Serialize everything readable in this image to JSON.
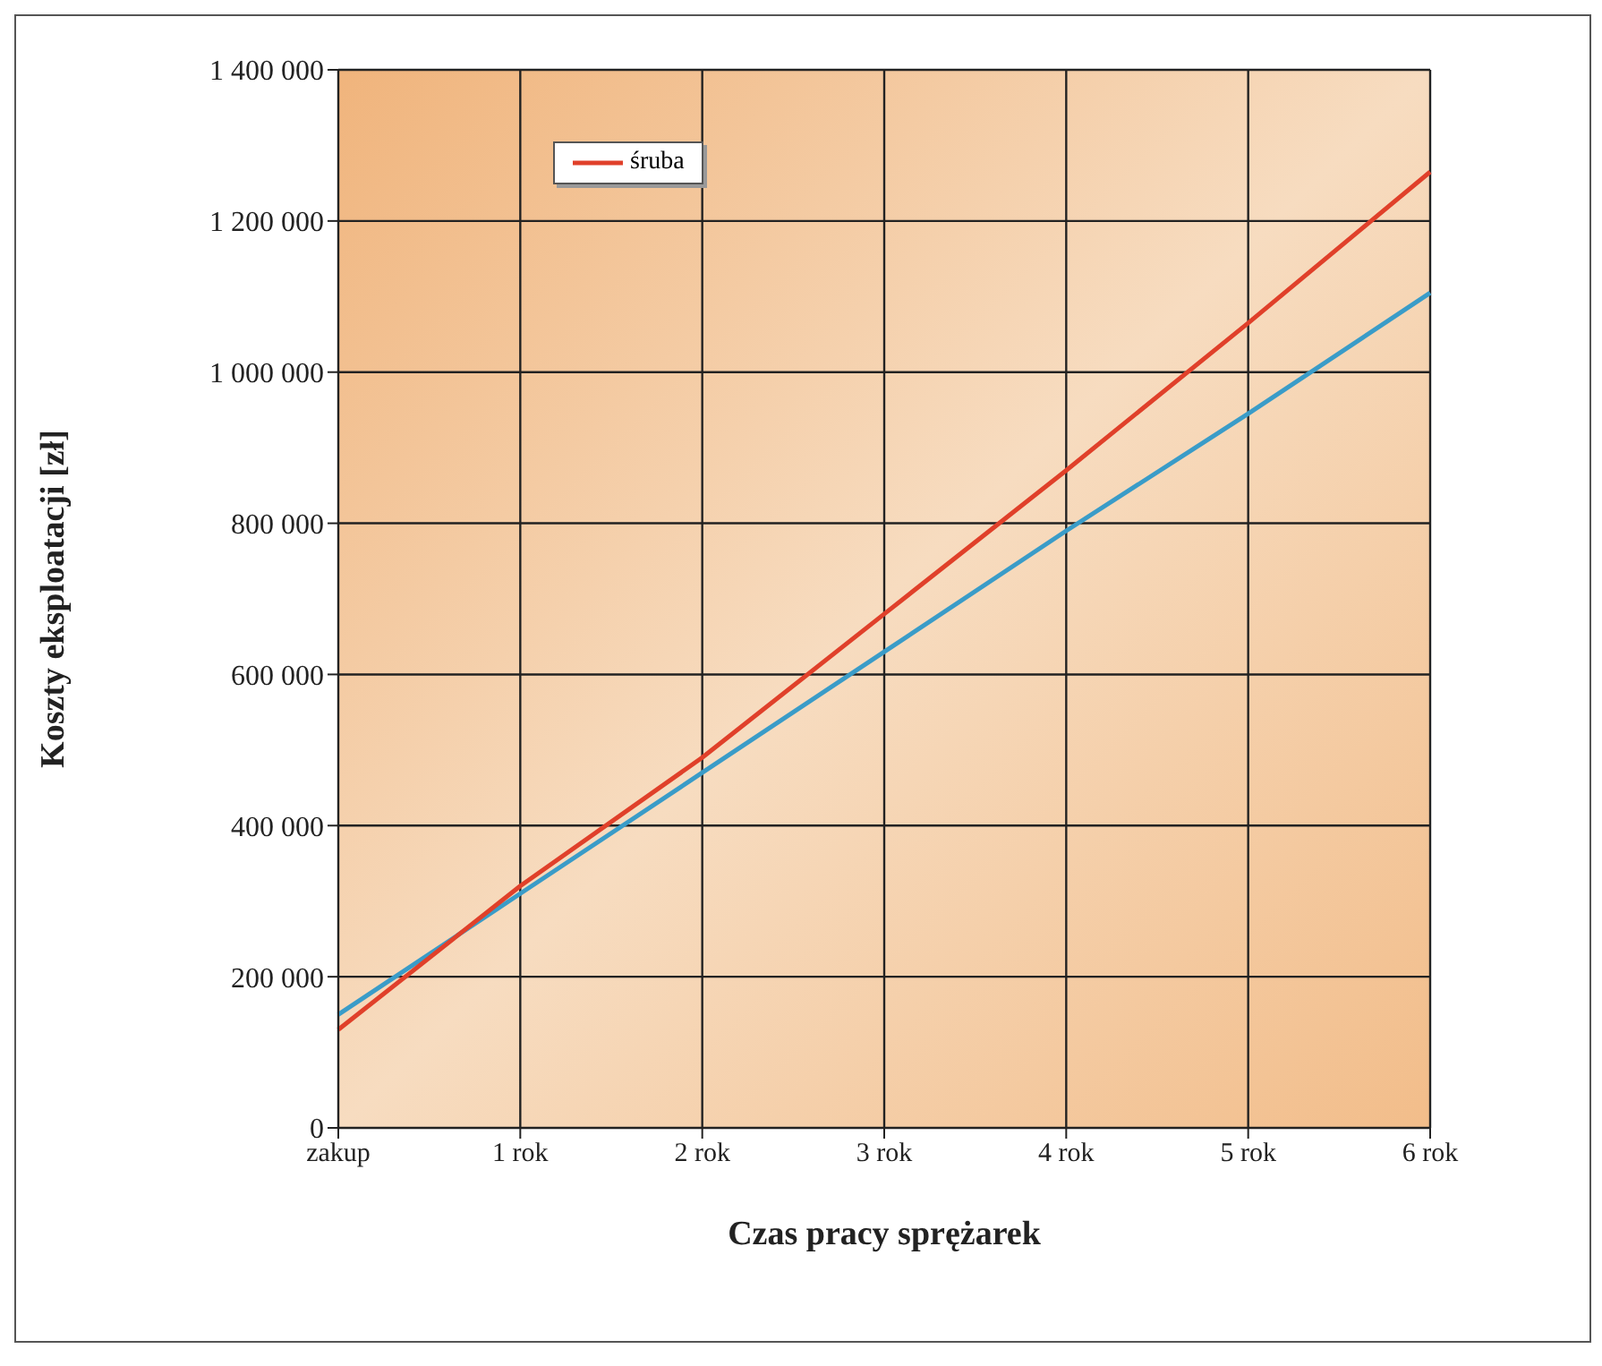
{
  "chart_data": {
    "type": "line",
    "xlabel": "Czas pracy sprężarek",
    "ylabel": "Koszty eksploatacji [zł]",
    "categories": [
      "zakup",
      "1 rok",
      "2 rok",
      "3 rok",
      "4 rok",
      "5 rok",
      "6 rok"
    ],
    "series": [
      {
        "color": "#3a9cc8",
        "values": [
          150000,
          310000,
          470000,
          630000,
          790000,
          945000,
          1105000
        ]
      },
      {
        "name": "śruba",
        "color": "#e0402a",
        "values": [
          130000,
          320000,
          490000,
          680000,
          870000,
          1065000,
          1265000
        ]
      }
    ],
    "ylim": [
      0,
      1400000
    ],
    "yticks": [
      0,
      {
        "value": 200000,
        "label": "200 000"
      },
      {
        "value": 400000,
        "label": "400 000"
      },
      {
        "value": 600000,
        "label": "600 000"
      },
      {
        "value": 800000,
        "label": "800 000"
      },
      {
        "value": 1000000,
        "label": "1 000 000"
      },
      {
        "value": 1200000,
        "label": "1 200 000"
      },
      {
        "value": 1400000,
        "label": "1 400 000"
      }
    ],
    "grid": true,
    "legend": "top left",
    "marker": "none",
    "line_style": "solid"
  }
}
